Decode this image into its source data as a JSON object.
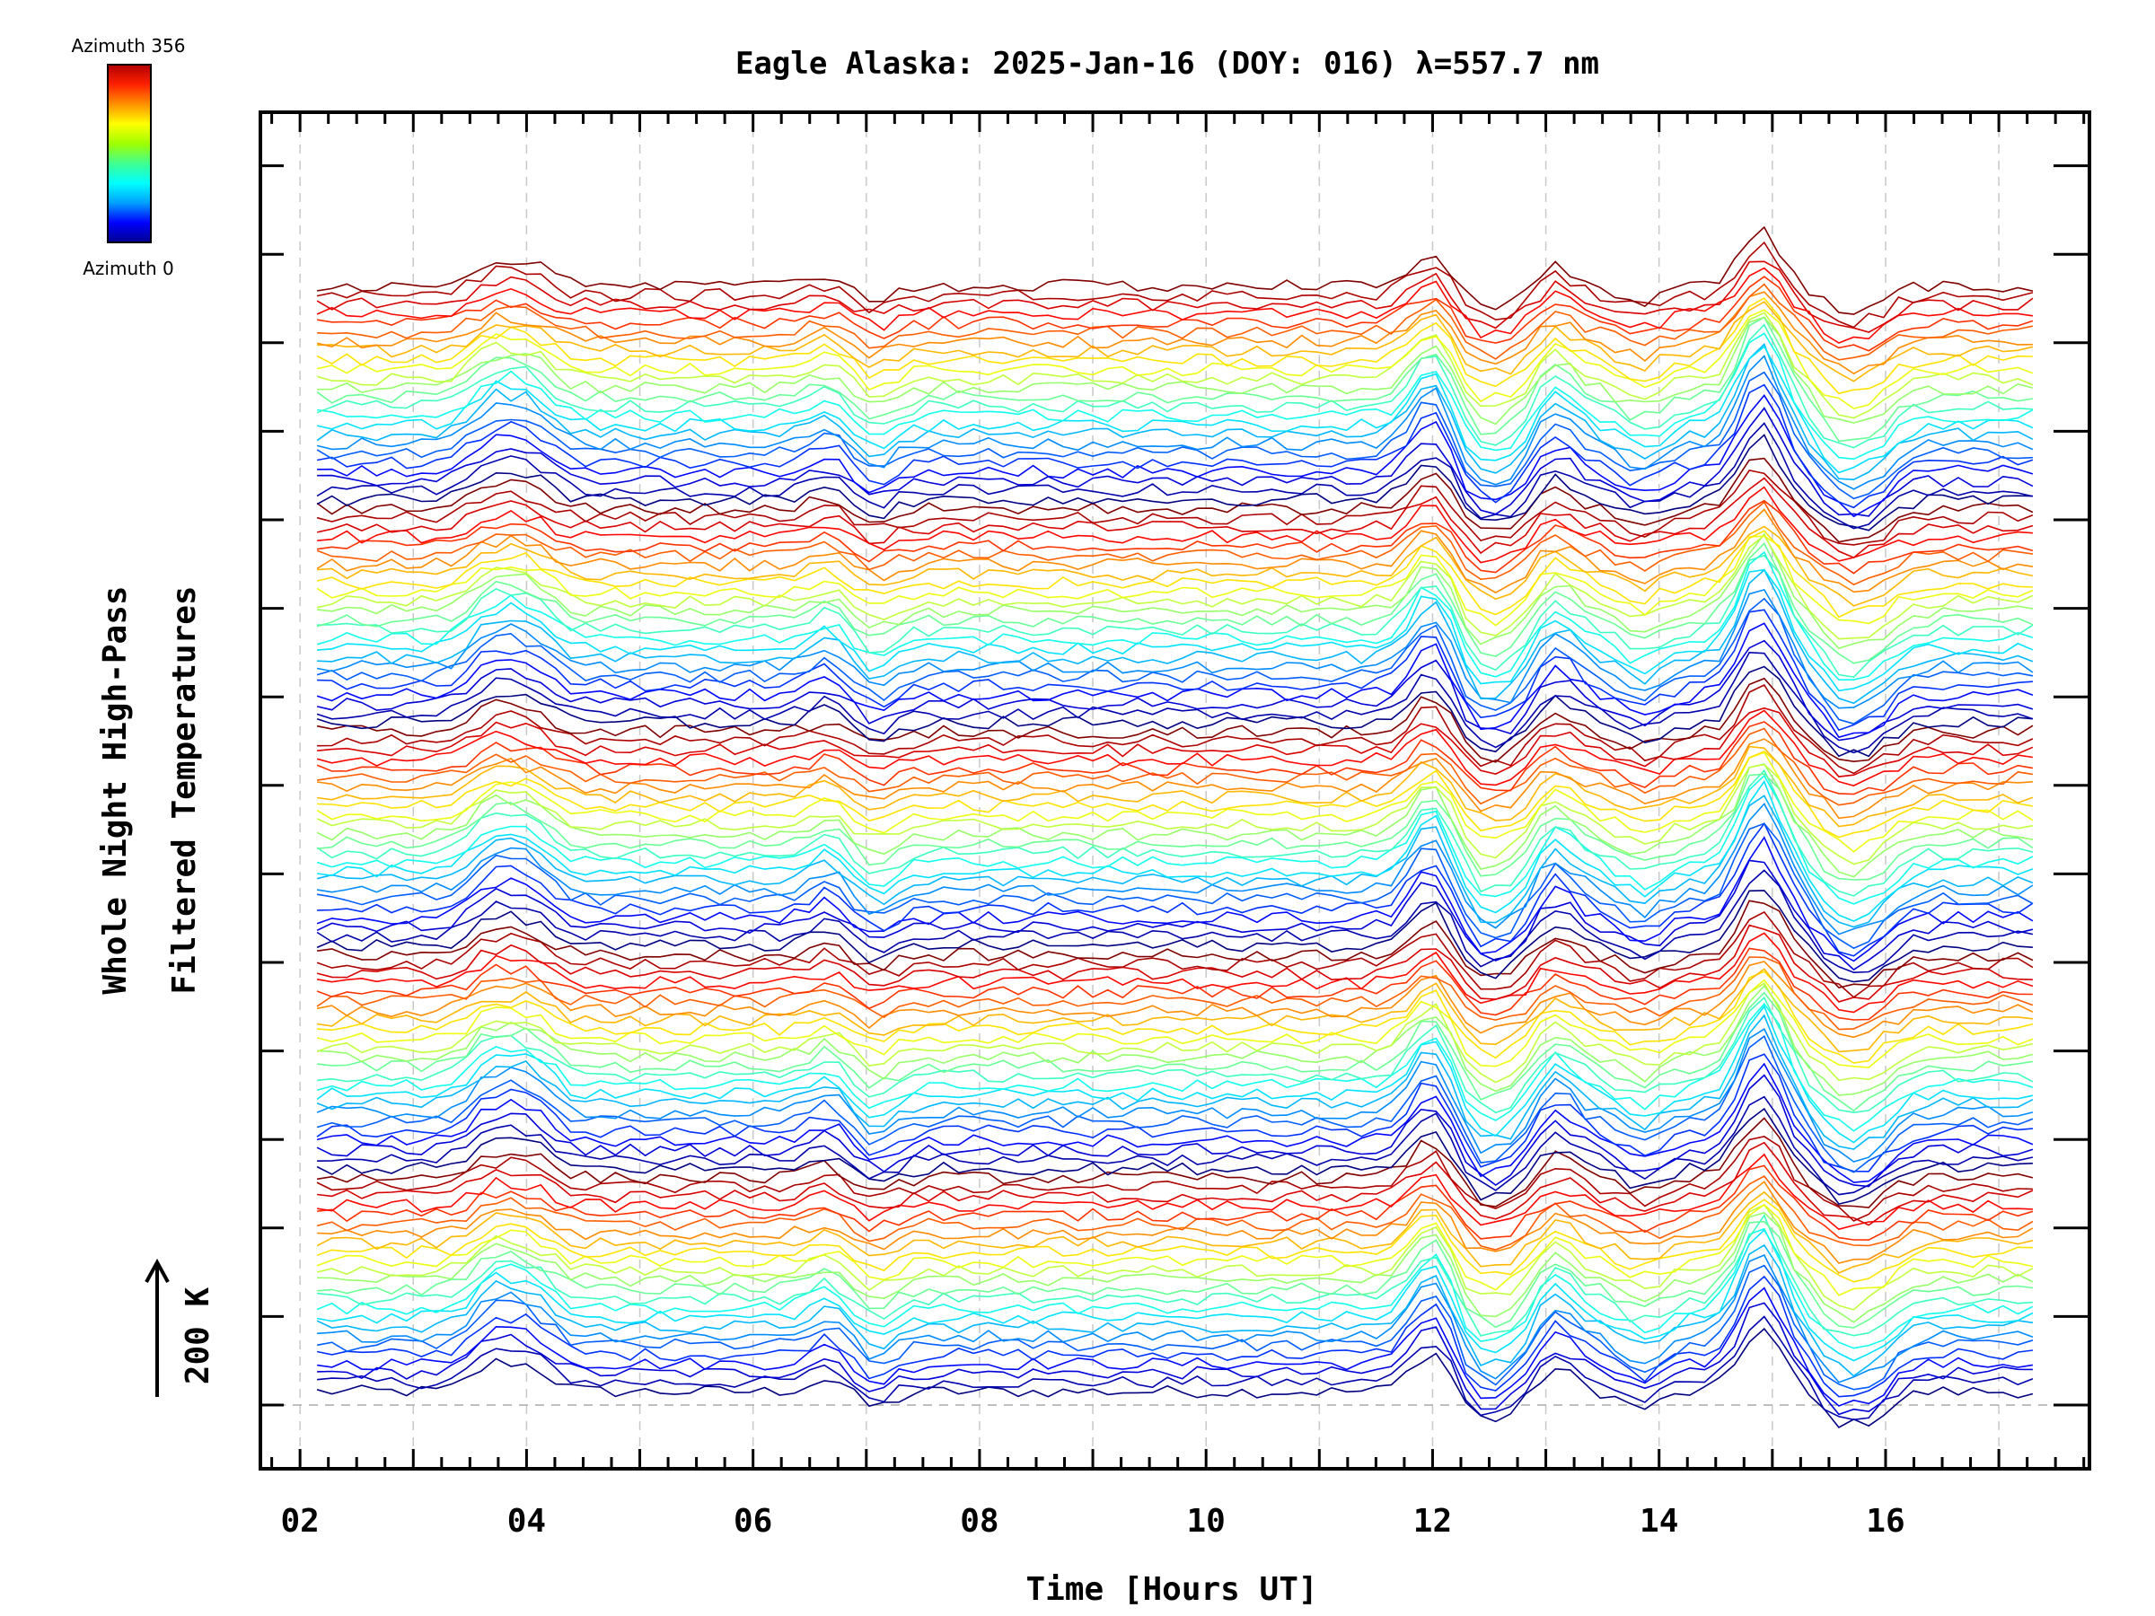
{
  "chart_data": {
    "type": "line",
    "title": "Eagle Alaska: 2025-Jan-16 (DOY: 016) λ=557.7 nm",
    "xlabel": "Time [Hours UT]",
    "ylabel_line1": "Whole Night High-Pass",
    "ylabel_line2": "Filtered Temperatures",
    "scale_label": "200 K",
    "xlim": [
      1.65,
      17.8
    ],
    "x_ticks": [
      2,
      4,
      6,
      8,
      10,
      12,
      14,
      16
    ],
    "x_tick_labels": [
      "02",
      "04",
      "06",
      "08",
      "10",
      "12",
      "14",
      "16"
    ],
    "time_start": 2.15,
    "time_end": 17.3,
    "colorbar": {
      "top_label": "Azimuth 356",
      "bottom_label": "Azimuth 0",
      "colormap": [
        "#00008f",
        "#0000ff",
        "#00a0ff",
        "#00ffff",
        "#40ff90",
        "#a0ff00",
        "#ffff00",
        "#ff9000",
        "#ff2000",
        "#b00000"
      ]
    },
    "series_count": 120,
    "grid": true,
    "features": [
      {
        "time": 3.7,
        "amplitude": 38
      },
      {
        "time": 4.05,
        "amplitude": 32
      },
      {
        "time": 6.7,
        "amplitude": 22
      },
      {
        "time": 7.05,
        "amplitude": -26
      },
      {
        "time": 12.0,
        "amplitude": 62
      },
      {
        "time": 12.4,
        "amplitude": -38
      },
      {
        "time": 12.75,
        "amplitude": -30
      },
      {
        "time": 13.05,
        "amplitude": 40
      },
      {
        "time": 13.85,
        "amplitude": -25
      },
      {
        "time": 14.9,
        "amplitude": 95
      },
      {
        "time": 15.6,
        "amplitude": -40
      },
      {
        "time": 15.9,
        "amplitude": -30
      }
    ]
  }
}
